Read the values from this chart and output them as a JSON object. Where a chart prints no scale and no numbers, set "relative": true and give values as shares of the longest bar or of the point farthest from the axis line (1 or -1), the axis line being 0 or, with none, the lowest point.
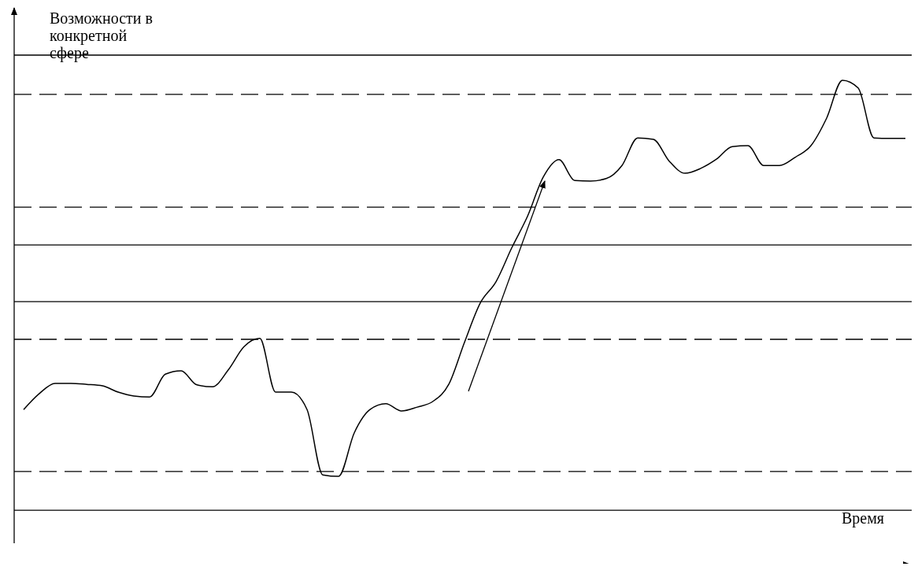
{
  "chart_data": {
    "type": "line",
    "relative": true,
    "ylabel": "Возможности в конкретной сфере",
    "xlabel": "Время",
    "categories": [
      null,
      null,
      null,
      null,
      null,
      null,
      null,
      null,
      null,
      null,
      null,
      null,
      null,
      null,
      null,
      null,
      null,
      null,
      null,
      null,
      null,
      null,
      null,
      null,
      null,
      null,
      null,
      null,
      null,
      null,
      null,
      null,
      null,
      null,
      null,
      null,
      null,
      null,
      null,
      null,
      null,
      null,
      null,
      null,
      null,
      null,
      null,
      null,
      null,
      null,
      null,
      null,
      null,
      null,
      null,
      null,
      null
    ],
    "series": [
      {
        "color": "#000000",
        "values": [
          0.32,
          0.353,
          0.374,
          0.374,
          0.372,
          0.369,
          0.356,
          0.348,
          0.346,
          0.393,
          0.4,
          0.371,
          0.367,
          0.402,
          0.45,
          0.467,
          0.356,
          0.356,
          0.32,
          0.185,
          0.182,
          0.272,
          0.32,
          0.332,
          0.317,
          0.325,
          0.337,
          0.372,
          0.459,
          0.54,
          0.584,
          0.654,
          0.719,
          0.8,
          0.836,
          0.793,
          0.792,
          0.797,
          0.824,
          0.881,
          0.878,
          0.833,
          0.808,
          0.818,
          0.837,
          0.863,
          0.865,
          0.824,
          0.824,
          0.841,
          0.865,
          0.922,
          1.0,
          0.984,
          0.881,
          0.88,
          0.88
        ]
      }
    ],
    "ref_lines": [
      {
        "axis": "y",
        "value": 1.052,
        "color": "#000000",
        "line_style": "solid"
      },
      {
        "axis": "y",
        "value": 0.971,
        "color": "#000000",
        "line_style": "dashed"
      },
      {
        "axis": "y",
        "value": 0.738,
        "color": "#000000",
        "line_style": "dashed"
      },
      {
        "axis": "y",
        "value": 0.66,
        "color": "#000000",
        "line_style": "solid"
      },
      {
        "axis": "y",
        "value": 0.543,
        "color": "#000000",
        "line_style": "solid"
      },
      {
        "axis": "y",
        "value": 0.465,
        "color": "#000000",
        "line_style": "dashed"
      },
      {
        "axis": "y",
        "value": 0.192,
        "color": "#000000",
        "line_style": "dashed"
      },
      {
        "axis": "y",
        "value": 0.112,
        "color": "#000000",
        "line_style": "solid"
      }
    ],
    "marker": "none",
    "line_style": "solid",
    "grid": false
  }
}
